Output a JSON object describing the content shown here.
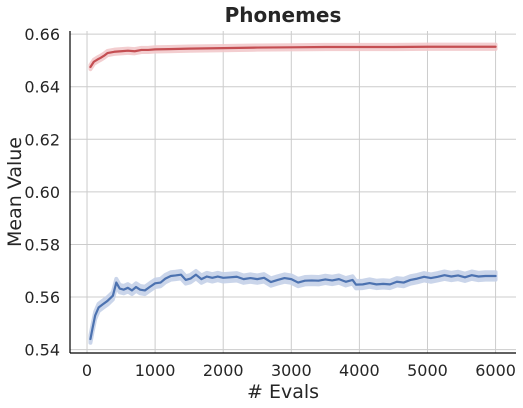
{
  "chart_data": {
    "type": "line",
    "title": "Phonemes",
    "xlabel": "# Evals",
    "ylabel": "Mean Value",
    "xlim": [
      -250,
      6300
    ],
    "ylim": [
      0.5387,
      0.6612
    ],
    "xticks": [
      0,
      1000,
      2000,
      3000,
      4000,
      5000,
      6000
    ],
    "xtick_labels": [
      "0",
      "1000",
      "2000",
      "3000",
      "4000",
      "5000",
      "6000"
    ],
    "yticks": [
      0.54,
      0.56,
      0.58,
      0.6,
      0.62,
      0.64,
      0.66
    ],
    "ytick_labels": [
      "0.54",
      "0.56",
      "0.58",
      "0.60",
      "0.62",
      "0.64",
      "0.66"
    ],
    "grid": true,
    "series": [
      {
        "color": "#c44e52",
        "band_color": "#f2c9cb",
        "band_half_width": 0.0008,
        "points": [
          [
            50,
            0.6475
          ],
          [
            100,
            0.6495
          ],
          [
            150,
            0.6503
          ],
          [
            200,
            0.651
          ],
          [
            250,
            0.6518
          ],
          [
            300,
            0.6528
          ],
          [
            400,
            0.6533
          ],
          [
            500,
            0.6535
          ],
          [
            600,
            0.6537
          ],
          [
            700,
            0.6535
          ],
          [
            800,
            0.654
          ],
          [
            900,
            0.654
          ],
          [
            1000,
            0.6542
          ],
          [
            1200,
            0.6543
          ],
          [
            1500,
            0.6545
          ],
          [
            2000,
            0.6547
          ],
          [
            2500,
            0.6549
          ],
          [
            3000,
            0.655
          ],
          [
            3500,
            0.6551
          ],
          [
            4000,
            0.6551
          ],
          [
            4500,
            0.6551
          ],
          [
            5000,
            0.6552
          ],
          [
            5500,
            0.6552
          ],
          [
            6000,
            0.6552
          ]
        ]
      },
      {
        "color": "#4c72b0",
        "band_color": "#c5d1e8",
        "band_half_width": 0.0014,
        "points": [
          [
            50,
            0.544
          ],
          [
            80,
            0.548
          ],
          [
            120,
            0.553
          ],
          [
            170,
            0.556
          ],
          [
            230,
            0.5572
          ],
          [
            300,
            0.5585
          ],
          [
            380,
            0.5605
          ],
          [
            430,
            0.5655
          ],
          [
            480,
            0.5632
          ],
          [
            540,
            0.5628
          ],
          [
            600,
            0.5635
          ],
          [
            660,
            0.5625
          ],
          [
            720,
            0.5638
          ],
          [
            780,
            0.5628
          ],
          [
            850,
            0.5625
          ],
          [
            920,
            0.5638
          ],
          [
            1000,
            0.5652
          ],
          [
            1080,
            0.5655
          ],
          [
            1150,
            0.567
          ],
          [
            1230,
            0.568
          ],
          [
            1300,
            0.5682
          ],
          [
            1380,
            0.5685
          ],
          [
            1450,
            0.5665
          ],
          [
            1520,
            0.567
          ],
          [
            1600,
            0.5685
          ],
          [
            1680,
            0.5668
          ],
          [
            1760,
            0.5678
          ],
          [
            1840,
            0.5673
          ],
          [
            1920,
            0.5678
          ],
          [
            2000,
            0.5673
          ],
          [
            2100,
            0.5675
          ],
          [
            2200,
            0.5677
          ],
          [
            2300,
            0.5668
          ],
          [
            2400,
            0.5672
          ],
          [
            2500,
            0.5668
          ],
          [
            2600,
            0.5673
          ],
          [
            2700,
            0.5657
          ],
          [
            2800,
            0.5665
          ],
          [
            2900,
            0.5672
          ],
          [
            3000,
            0.5668
          ],
          [
            3100,
            0.5655
          ],
          [
            3200,
            0.5662
          ],
          [
            3300,
            0.5663
          ],
          [
            3400,
            0.5662
          ],
          [
            3500,
            0.5667
          ],
          [
            3600,
            0.5663
          ],
          [
            3700,
            0.5668
          ],
          [
            3800,
            0.5658
          ],
          [
            3900,
            0.5665
          ],
          [
            3950,
            0.5647
          ],
          [
            4050,
            0.5648
          ],
          [
            4150,
            0.5653
          ],
          [
            4250,
            0.5648
          ],
          [
            4350,
            0.565
          ],
          [
            4450,
            0.5648
          ],
          [
            4550,
            0.5658
          ],
          [
            4650,
            0.5655
          ],
          [
            4750,
            0.5665
          ],
          [
            4850,
            0.567
          ],
          [
            4950,
            0.5677
          ],
          [
            5050,
            0.5672
          ],
          [
            5150,
            0.5677
          ],
          [
            5250,
            0.5683
          ],
          [
            5350,
            0.5678
          ],
          [
            5450,
            0.5682
          ],
          [
            5550,
            0.5675
          ],
          [
            5650,
            0.5683
          ],
          [
            5750,
            0.5678
          ],
          [
            5850,
            0.568
          ],
          [
            6000,
            0.568
          ]
        ]
      }
    ]
  }
}
